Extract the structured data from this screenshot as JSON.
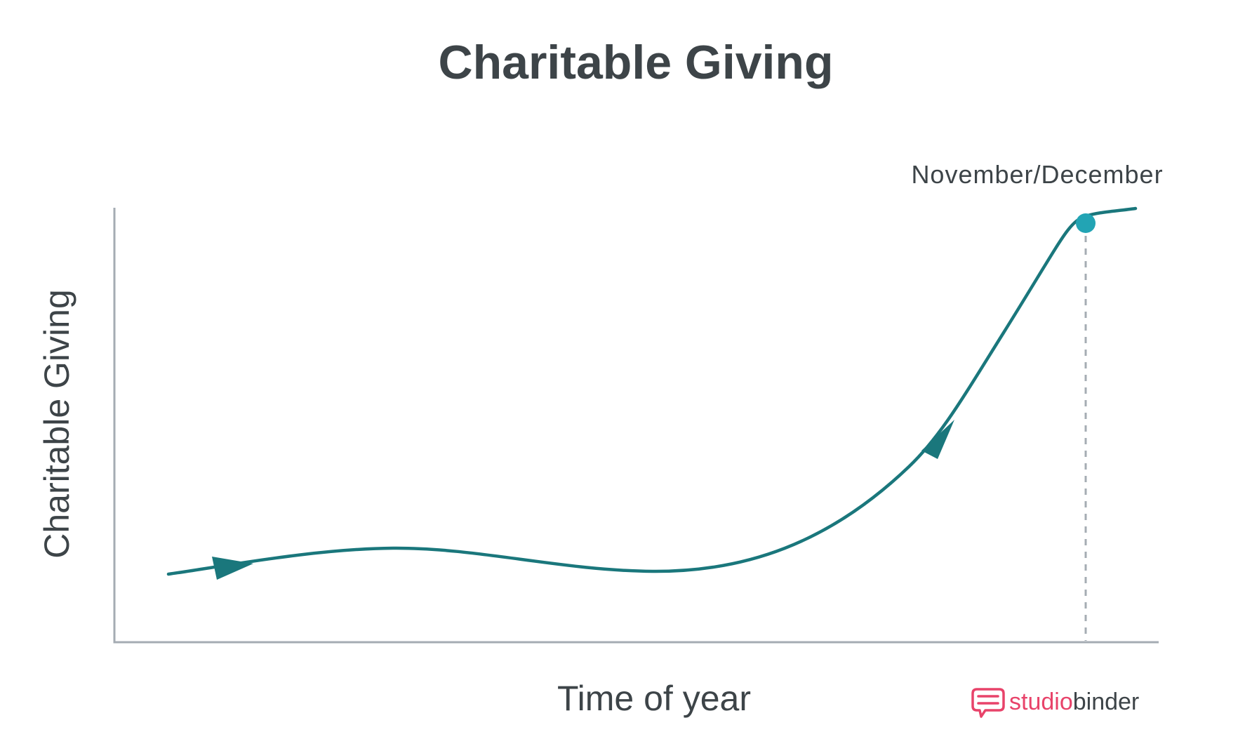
{
  "colors": {
    "background": "#ffffff",
    "text": "#3d4448",
    "axis": "#a5acb3",
    "curve": "#1a777c",
    "marker": "#22a4b4",
    "dash": "#a5acb3",
    "brand_studio": "#e8436a",
    "brand_binder": "#3d4448"
  },
  "chart_data": {
    "type": "line",
    "title": "Charitable Giving",
    "xlabel": "Time of year",
    "ylabel": "Charitable Giving",
    "grid": false,
    "direction_arrows": true,
    "annotation": {
      "label": "November/December",
      "marker_icon": "circle-marker-icon"
    }
  },
  "brand": {
    "icon": "chat-bubble-logo-icon",
    "name_part1": "studio",
    "name_part2": "binder"
  }
}
